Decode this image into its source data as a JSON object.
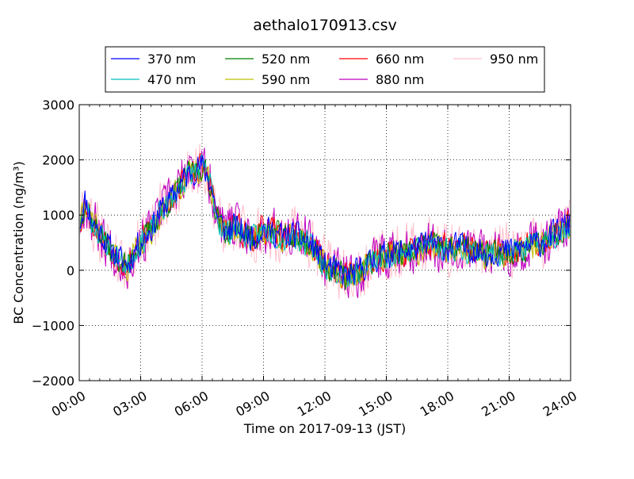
{
  "chart_data": {
    "type": "line",
    "title": "aethalo170913.csv",
    "xlabel": "Time on 2017-09-13 (JST)",
    "ylabel": "BC Concentration (ng/m³)",
    "x_unit": "hours",
    "xlim": [
      0,
      24
    ],
    "ylim": [
      -2000,
      3000
    ],
    "x_ticks": [
      {
        "value": 0,
        "label": "00:00"
      },
      {
        "value": 3,
        "label": "03:00"
      },
      {
        "value": 6,
        "label": "06:00"
      },
      {
        "value": 9,
        "label": "09:00"
      },
      {
        "value": 12,
        "label": "12:00"
      },
      {
        "value": 15,
        "label": "15:00"
      },
      {
        "value": 18,
        "label": "18:00"
      },
      {
        "value": 21,
        "label": "21:00"
      },
      {
        "value": 24,
        "label": "24:00"
      }
    ],
    "y_ticks": [
      {
        "value": -2000,
        "label": "−2000"
      },
      {
        "value": -1000,
        "label": "−1000"
      },
      {
        "value": 0,
        "label": "0"
      },
      {
        "value": 1000,
        "label": "1000"
      },
      {
        "value": 2000,
        "label": "2000"
      },
      {
        "value": 3000,
        "label": "3000"
      }
    ],
    "grid": true,
    "legend_position": "top",
    "baseline": {
      "x": [
        0.0,
        0.3,
        0.6,
        1.0,
        1.5,
        2.0,
        2.4,
        2.8,
        3.2,
        3.6,
        4.0,
        4.5,
        5.0,
        5.5,
        6.0,
        6.4,
        6.8,
        7.2,
        7.6,
        8.0,
        8.5,
        9.0,
        9.5,
        10.0,
        10.5,
        11.0,
        11.5,
        12.0,
        12.5,
        13.0,
        13.5,
        14.0,
        14.5,
        15.0,
        15.5,
        16.0,
        16.5,
        17.0,
        17.5,
        18.0,
        18.5,
        19.0,
        19.5,
        20.0,
        20.5,
        21.0,
        21.5,
        22.0,
        22.5,
        23.0,
        23.5,
        24.0
      ],
      "y": [
        800,
        1300,
        900,
        700,
        400,
        200,
        100,
        450,
        600,
        800,
        1100,
        1300,
        1600,
        1800,
        1900,
        1600,
        900,
        700,
        800,
        700,
        600,
        750,
        700,
        600,
        650,
        550,
        400,
        100,
        0,
        -100,
        -50,
        100,
        200,
        300,
        350,
        350,
        400,
        500,
        450,
        400,
        450,
        400,
        350,
        300,
        350,
        350,
        400,
        450,
        500,
        600,
        750,
        850
      ]
    },
    "series": [
      {
        "name": "370 nm",
        "color": "#0000ff",
        "amp": 300,
        "seed": 11,
        "bias": 0
      },
      {
        "name": "470 nm",
        "color": "#00bfbf",
        "amp": 280,
        "seed": 23,
        "bias": -30
      },
      {
        "name": "520 nm",
        "color": "#008000",
        "amp": 290,
        "seed": 37,
        "bias": -20
      },
      {
        "name": "590 nm",
        "color": "#bfbf00",
        "amp": 300,
        "seed": 41,
        "bias": -40
      },
      {
        "name": "660 nm",
        "color": "#ff0000",
        "amp": 320,
        "seed": 53,
        "bias": -10
      },
      {
        "name": "880 nm",
        "color": "#bf00bf",
        "amp": 520,
        "seed": 67,
        "bias": 0
      },
      {
        "name": "950 nm",
        "color": "#ffc0cb",
        "amp": 620,
        "seed": 79,
        "bias": 0
      }
    ]
  }
}
